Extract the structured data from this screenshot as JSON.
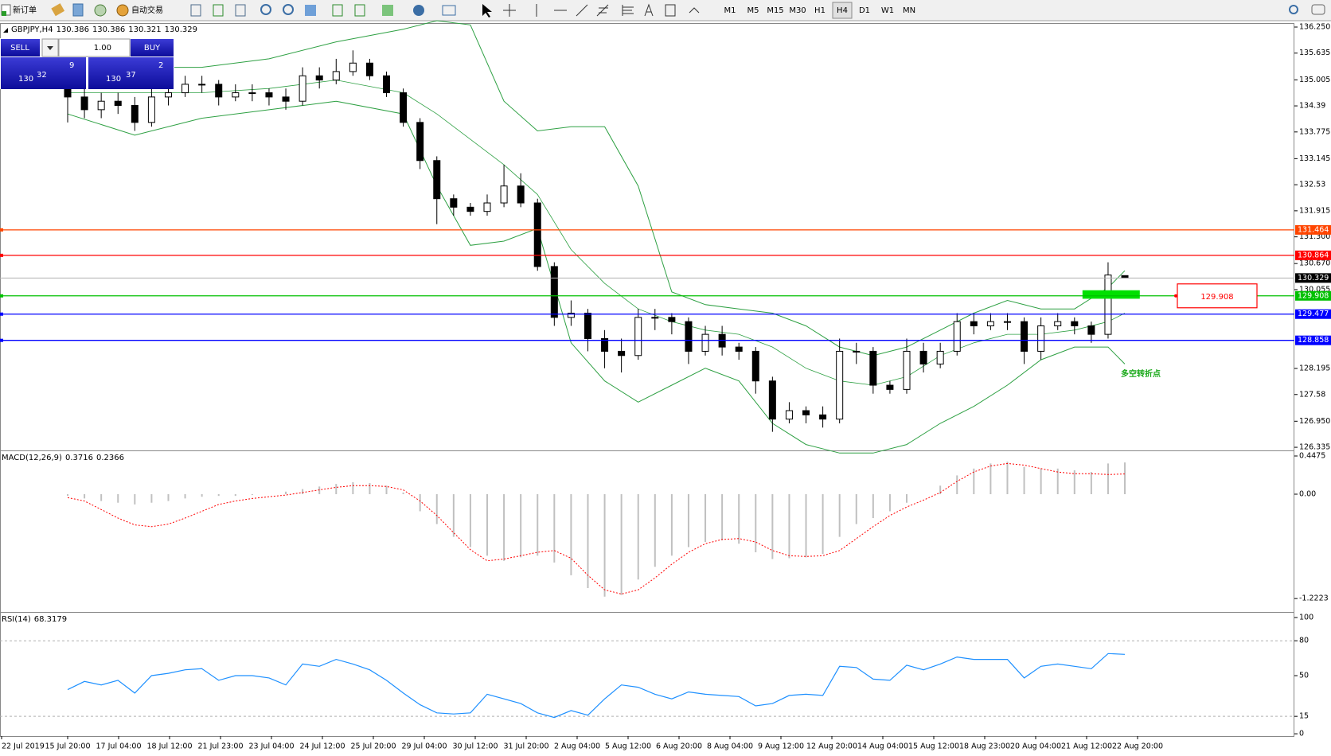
{
  "toolbar": {
    "new_order": "新订单",
    "auto_trading": "自动交易",
    "timeframes": [
      "M1",
      "M5",
      "M15",
      "M30",
      "H1",
      "H4",
      "D1",
      "W1",
      "MN"
    ],
    "active_timeframe": "H4"
  },
  "trade_panel": {
    "sell": "SELL",
    "buy": "BUY",
    "lots": "1.00",
    "sell_price": [
      "130",
      "32",
      "9"
    ],
    "buy_price": [
      "130",
      "37",
      "2"
    ]
  },
  "chart": {
    "type": "candlestick",
    "symbol": "GBPJPY,H4",
    "candles": [
      [
        134.8,
        135.0,
        134.0,
        134.6
      ],
      [
        134.6,
        134.8,
        134.1,
        134.3
      ],
      [
        134.3,
        134.7,
        134.1,
        134.5
      ],
      [
        134.5,
        134.7,
        134.2,
        134.4
      ],
      [
        134.4,
        134.6,
        133.8,
        134.0
      ],
      [
        134.0,
        134.8,
        133.9,
        134.6
      ],
      [
        134.6,
        134.9,
        134.4,
        134.7
      ],
      [
        134.7,
        135.1,
        134.6,
        134.9
      ],
      [
        134.9,
        135.1,
        134.7,
        134.9
      ],
      [
        134.9,
        135.0,
        134.4,
        134.6
      ],
      [
        134.6,
        134.9,
        134.5,
        134.7
      ],
      [
        134.7,
        134.9,
        134.5,
        134.7
      ],
      [
        134.7,
        134.8,
        134.4,
        134.6
      ],
      [
        134.6,
        134.8,
        134.3,
        134.5
      ],
      [
        134.5,
        135.3,
        134.4,
        135.1
      ],
      [
        135.1,
        135.3,
        134.8,
        135.0
      ],
      [
        135.0,
        135.5,
        134.9,
        135.2
      ],
      [
        135.2,
        135.7,
        135.1,
        135.4
      ],
      [
        135.4,
        135.5,
        135.0,
        135.1
      ],
      [
        135.1,
        135.2,
        134.6,
        134.7
      ],
      [
        134.7,
        134.8,
        133.9,
        134.0
      ],
      [
        134.0,
        134.1,
        132.9,
        133.1
      ],
      [
        133.1,
        133.2,
        131.6,
        132.2
      ],
      [
        132.2,
        132.3,
        131.8,
        132.0
      ],
      [
        132.0,
        132.1,
        131.8,
        131.9
      ],
      [
        131.9,
        132.3,
        131.8,
        132.1
      ],
      [
        132.1,
        133.0,
        132.0,
        132.5
      ],
      [
        132.5,
        132.8,
        132.0,
        132.1
      ],
      [
        132.1,
        132.2,
        130.5,
        130.6
      ],
      [
        130.6,
        130.7,
        129.2,
        129.4
      ],
      [
        129.4,
        129.8,
        129.2,
        129.5
      ],
      [
        129.5,
        129.6,
        128.6,
        128.9
      ],
      [
        128.9,
        129.1,
        128.2,
        128.6
      ],
      [
        128.6,
        128.9,
        128.1,
        128.5
      ],
      [
        128.5,
        129.6,
        128.4,
        129.4
      ],
      [
        129.4,
        129.6,
        129.1,
        129.4
      ],
      [
        129.4,
        129.5,
        129.0,
        129.3
      ],
      [
        129.3,
        129.4,
        128.3,
        128.6
      ],
      [
        128.6,
        129.2,
        128.5,
        129.0
      ],
      [
        129.0,
        129.2,
        128.5,
        128.7
      ],
      [
        128.7,
        128.8,
        128.4,
        128.6
      ],
      [
        128.6,
        128.7,
        127.6,
        127.9
      ],
      [
        127.9,
        128.0,
        126.7,
        127.0
      ],
      [
        127.0,
        127.4,
        126.9,
        127.2
      ],
      [
        127.2,
        127.3,
        126.9,
        127.1
      ],
      [
        127.1,
        127.3,
        126.8,
        127.0
      ],
      [
        127.0,
        128.9,
        126.9,
        128.6
      ],
      [
        128.6,
        128.8,
        128.3,
        128.6
      ],
      [
        128.6,
        128.7,
        127.6,
        127.8
      ],
      [
        127.8,
        127.9,
        127.6,
        127.7
      ],
      [
        127.7,
        128.9,
        127.6,
        128.6
      ],
      [
        128.6,
        128.8,
        128.1,
        128.3
      ],
      [
        128.3,
        128.8,
        128.2,
        128.6
      ],
      [
        128.6,
        129.5,
        128.5,
        129.3
      ],
      [
        129.3,
        129.5,
        129.0,
        129.2
      ],
      [
        129.2,
        129.5,
        129.1,
        129.3
      ],
      [
        129.3,
        129.5,
        129.1,
        129.3
      ],
      [
        129.3,
        129.4,
        128.3,
        128.6
      ],
      [
        128.6,
        129.4,
        128.4,
        129.2
      ],
      [
        129.2,
        129.5,
        129.1,
        129.3
      ],
      [
        129.3,
        129.4,
        129.0,
        129.2
      ],
      [
        129.2,
        129.3,
        128.8,
        129.0
      ],
      [
        129.0,
        130.7,
        128.9,
        130.4
      ],
      [
        130.386,
        130.386,
        130.321,
        130.329
      ]
    ],
    "ylim": [
      126.28,
      136.325
    ],
    "yticks": [
      {
        "value": 136.25,
        "label": "136.250"
      },
      135.635,
      135.005,
      134.39,
      133.775,
      133.145,
      132.53,
      131.915,
      {
        "value": 131.3,
        "label": "131.300"
      },
      {
        "value": 130.67,
        "label": "130.670"
      },
      130.055,
      128.195,
      127.58,
      {
        "value": 126.95,
        "label": "126.950"
      },
      126.335
    ],
    "current_color": "#b0b0b0",
    "bollinger": {
      "color": "#2ea043",
      "x": [
        0,
        4,
        8,
        12,
        16,
        20,
        22,
        24,
        26,
        28,
        30,
        32,
        34,
        36,
        38,
        40,
        42,
        44,
        46,
        48,
        50,
        52,
        54,
        56,
        58,
        60,
        62,
        63
      ],
      "upper": [
        135.2,
        135.3,
        135.3,
        135.5,
        135.9,
        136.2,
        136.4,
        136.3,
        134.5,
        133.8,
        133.9,
        133.9,
        132.5,
        130.0,
        129.7,
        129.6,
        129.5,
        129.2,
        128.7,
        128.5,
        128.7,
        129.1,
        129.5,
        129.8,
        129.6,
        129.6,
        130.1,
        130.5
      ],
      "middle": [
        134.7,
        134.7,
        134.7,
        134.8,
        135.0,
        134.7,
        134.2,
        133.6,
        133.0,
        132.3,
        131.0,
        130.2,
        129.6,
        129.3,
        129.1,
        129.0,
        128.7,
        128.2,
        127.9,
        127.8,
        128.0,
        128.5,
        128.8,
        129.0,
        129.0,
        129.1,
        129.3,
        129.5
      ],
      "lower": [
        134.2,
        133.7,
        134.1,
        134.3,
        134.5,
        134.2,
        132.5,
        131.1,
        131.2,
        131.5,
        128.8,
        127.9,
        127.4,
        127.8,
        128.2,
        127.9,
        126.9,
        126.4,
        126.2,
        126.2,
        126.4,
        126.9,
        127.3,
        127.8,
        128.4,
        128.7,
        128.7,
        128.3
      ]
    },
    "levels": [
      {
        "value": 131.464,
        "color": "#ff4500"
      },
      {
        "value": 130.864,
        "color": "#ff0000"
      },
      {
        "value": 129.908,
        "color": "#00c000"
      },
      {
        "value": 129.477,
        "color": "#0000ff"
      },
      {
        "value": 128.858,
        "color": "#0000ff"
      }
    ],
    "zone": {
      "top": 130.04,
      "bottom": 129.84,
      "color": "#00e000"
    },
    "annotation": "多空转折点"
  },
  "macd": {
    "name": "MACD(12,26,9)",
    "ylim": [
      -1.37,
      0.494
    ],
    "yticks": [
      0.4475,
      {
        "value": 0,
        "label": "0.00"
      },
      -1.2223
    ],
    "histogram": [
      -0.02,
      -0.05,
      -0.08,
      -0.1,
      -0.12,
      -0.1,
      -0.08,
      -0.05,
      -0.03,
      -0.02,
      -0.02,
      -0.01,
      0.0,
      0.03,
      0.06,
      0.09,
      0.12,
      0.14,
      0.13,
      0.1,
      0.02,
      -0.2,
      -0.35,
      -0.5,
      -0.62,
      -0.72,
      -0.78,
      -0.74,
      -0.72,
      -0.8,
      -0.95,
      -1.1,
      -1.2,
      -1.18,
      -1.0,
      -0.85,
      -0.72,
      -0.62,
      -0.56,
      -0.54,
      -0.58,
      -0.68,
      -0.76,
      -0.75,
      -0.74,
      -0.7,
      -0.5,
      -0.35,
      -0.28,
      -0.2,
      -0.1,
      0.0,
      0.1,
      0.22,
      0.3,
      0.36,
      0.38,
      0.32,
      0.3,
      0.3,
      0.28,
      0.26,
      0.36,
      0.3716
    ],
    "signal": [
      -0.04,
      -0.08,
      -0.18,
      -0.28,
      -0.36,
      -0.38,
      -0.35,
      -0.28,
      -0.2,
      -0.12,
      -0.08,
      -0.05,
      -0.03,
      -0.01,
      0.02,
      0.05,
      0.08,
      0.1,
      0.1,
      0.09,
      0.05,
      -0.08,
      -0.25,
      -0.45,
      -0.65,
      -0.78,
      -0.76,
      -0.72,
      -0.68,
      -0.66,
      -0.75,
      -0.95,
      -1.12,
      -1.17,
      -1.12,
      -0.98,
      -0.82,
      -0.68,
      -0.58,
      -0.53,
      -0.52,
      -0.56,
      -0.66,
      -0.72,
      -0.73,
      -0.72,
      -0.66,
      -0.52,
      -0.38,
      -0.25,
      -0.15,
      -0.07,
      0.02,
      0.15,
      0.26,
      0.33,
      0.36,
      0.34,
      0.3,
      0.26,
      0.24,
      0.24,
      0.23,
      0.2366
    ],
    "histogram_color": "#c0c0c0",
    "signal_color": "#ff0000"
  },
  "rsi": {
    "name": "RSI(14)",
    "ylim": [
      -2,
      103.4
    ],
    "yticks": [
      100,
      80,
      50,
      15,
      0
    ],
    "levels": [
      80,
      15
    ],
    "color": "#1e90ff",
    "values": [
      38,
      45,
      42,
      46,
      35,
      50,
      52,
      55,
      56,
      46,
      50,
      50,
      48,
      42,
      60,
      58,
      64,
      60,
      55,
      46,
      35,
      25,
      18,
      17,
      18,
      34,
      30,
      26,
      18,
      14,
      20,
      16,
      30,
      42,
      40,
      34,
      30,
      36,
      34,
      33,
      32,
      24,
      26,
      33,
      34,
      33,
      58,
      57,
      47,
      46,
      59,
      55,
      60,
      66,
      64,
      64,
      64,
      48,
      58,
      60,
      58,
      56,
      69,
      68.3179
    ]
  },
  "x_labels": [
    "22 Jul 2019",
    "15 Jul 20:00",
    "17 Jul 04:00",
    "18 Jul 12:00",
    "21 Jul 23:00",
    "23 Jul 04:00",
    "24 Jul 12:00",
    "25 Jul 20:00",
    "29 Jul 04:00",
    "30 Jul 12:00",
    "31 Jul 20:00",
    "2 Aug 04:00",
    "5 Aug 12:00",
    "6 Aug 20:00",
    "8 Aug 04:00",
    "9 Aug 12:00",
    "12 Aug 20:00",
    "14 Aug 04:00",
    "15 Aug 12:00",
    "18 Aug 23:00",
    "20 Aug 04:00",
    "21 Aug 12:00",
    "22 Aug 20:00"
  ]
}
